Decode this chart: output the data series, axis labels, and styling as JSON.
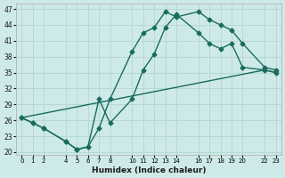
{
  "xlabel": "Humidex (Indice chaleur)",
  "bg_color": "#ceeae8",
  "grid_color": "#b8d8d5",
  "line_color": "#1a6b60",
  "xlim": [
    -0.5,
    23.5
  ],
  "ylim": [
    19.5,
    48
  ],
  "yticks": [
    20,
    23,
    26,
    29,
    32,
    35,
    38,
    41,
    44,
    47
  ],
  "xticks": [
    0,
    1,
    2,
    4,
    5,
    6,
    7,
    8,
    10,
    11,
    12,
    13,
    14,
    16,
    17,
    18,
    19,
    20,
    22,
    23
  ],
  "xtick_labels": [
    "0",
    "1",
    "2",
    "4",
    "5",
    "6",
    "7",
    "8",
    "10",
    "11",
    "12",
    "13",
    "14",
    "16",
    "17",
    "18",
    "19",
    "20",
    "22",
    "23"
  ],
  "line1_x": [
    0,
    1,
    2,
    4,
    5,
    6,
    7,
    8,
    10,
    11,
    12,
    13,
    14,
    16,
    17,
    18,
    19,
    20,
    22,
    23
  ],
  "line1_y": [
    26.5,
    25.5,
    24.5,
    22.0,
    20.5,
    21.0,
    24.5,
    30.0,
    39.0,
    42.5,
    43.5,
    46.5,
    45.5,
    46.5,
    45.0,
    44.0,
    43.0,
    40.5,
    36.0,
    35.5
  ],
  "line2_x": [
    0,
    1,
    2,
    4,
    5,
    6,
    7,
    8,
    10,
    11,
    12,
    13,
    14,
    16,
    17,
    18,
    19,
    20,
    22,
    23
  ],
  "line2_y": [
    26.5,
    25.5,
    24.5,
    22.0,
    20.5,
    21.0,
    30.0,
    25.5,
    30.0,
    35.5,
    38.5,
    43.5,
    46.0,
    42.5,
    40.5,
    39.5,
    40.5,
    36.0,
    35.5,
    35.0
  ],
  "line3_x": [
    0,
    22,
    23
  ],
  "line3_y": [
    26.5,
    35.5,
    35.0
  ]
}
